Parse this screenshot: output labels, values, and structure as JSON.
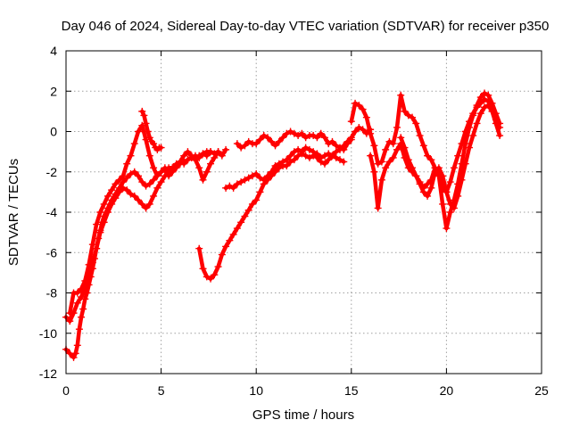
{
  "chart_data": {
    "type": "scatter",
    "title": "Day 046 of 2024, Sidereal Day-to-day VTEC variation (SDTVAR) for receiver p350",
    "xlabel": "GPS time / hours",
    "ylabel": "SDTVAR / TECUs",
    "xlim": [
      0,
      25
    ],
    "ylim": [
      -12,
      4
    ],
    "xticks": [
      0,
      5,
      10,
      15,
      20,
      25
    ],
    "yticks": [
      -12,
      -10,
      -8,
      -6,
      -4,
      -2,
      0,
      2,
      4
    ],
    "grid": true,
    "legend": "none",
    "marker": "plus",
    "color": "#ff0000",
    "series": [
      {
        "x": [
          0.0,
          0.2,
          0.4,
          0.5,
          0.6,
          0.7,
          0.8,
          0.9,
          1.0,
          1.1,
          1.2,
          1.3,
          1.4,
          1.5,
          1.6,
          1.7,
          1.8,
          1.9,
          2.0,
          2.2,
          2.4,
          2.6,
          2.8,
          3.0,
          3.2,
          3.4,
          3.6,
          3.8,
          4.0,
          4.2,
          4.4,
          4.6,
          4.8,
          5.0,
          5.2,
          5.4,
          5.6,
          5.8,
          6.0,
          6.2,
          6.4,
          6.6,
          6.8,
          7.0,
          7.2,
          7.4,
          7.6,
          7.8,
          8.0,
          8.2,
          8.4
        ],
        "y": [
          -10.8,
          -11.0,
          -11.2,
          -11.0,
          -10.6,
          -9.8,
          -9.2,
          -8.8,
          -8.3,
          -8.0,
          -7.6,
          -7.2,
          -6.8,
          -6.3,
          -5.8,
          -5.3,
          -4.9,
          -4.5,
          -4.2,
          -3.8,
          -3.4,
          -3.1,
          -2.8,
          -2.5,
          -2.3,
          -2.1,
          -2.0,
          -2.2,
          -2.5,
          -2.7,
          -2.6,
          -2.4,
          -2.2,
          -2.0,
          -1.9,
          -1.8,
          -1.8,
          -1.6,
          -1.5,
          -1.6,
          -1.4,
          -1.3,
          -1.2,
          -1.3,
          -1.1,
          -1.0,
          -1.0,
          -1.1,
          -1.0,
          -1.2,
          -0.9
        ]
      },
      {
        "x": [
          0.0,
          0.2,
          0.4,
          0.6,
          0.8,
          1.0,
          1.2,
          1.4,
          1.6,
          1.8,
          2.0,
          2.2,
          2.4,
          2.6,
          2.8,
          3.0,
          3.2,
          3.4,
          3.6,
          3.8,
          4.0,
          4.2,
          4.4,
          4.6,
          4.8,
          5.0,
          5.2,
          5.4,
          5.6,
          5.8,
          6.0,
          6.2,
          6.4,
          6.6,
          6.8,
          7.0,
          7.2,
          7.4,
          7.6
        ],
        "y": [
          -9.2,
          -9.4,
          -9.0,
          -8.5,
          -8.2,
          -7.8,
          -7.2,
          -6.5,
          -5.8,
          -5.0,
          -4.5,
          -4.0,
          -3.6,
          -3.3,
          -3.0,
          -2.8,
          -2.9,
          -3.1,
          -3.2,
          -3.4,
          -3.6,
          -3.8,
          -3.6,
          -3.2,
          -2.8,
          -2.5,
          -2.2,
          -2.0,
          -1.8,
          -1.7,
          -1.6,
          -1.5,
          -1.4,
          -1.3,
          -1.4,
          -1.2,
          -1.1,
          -1.2,
          -1.0
        ]
      },
      {
        "x": [
          0.2,
          0.4,
          0.6,
          0.8,
          1.0,
          1.2,
          1.4,
          1.6,
          1.8,
          2.0,
          2.2,
          2.4,
          2.6,
          2.8,
          3.0,
          3.2,
          3.4,
          3.6,
          3.8,
          4.0,
          4.2,
          4.4,
          4.6,
          4.8,
          5.0,
          5.2,
          5.4,
          5.6,
          5.8,
          6.0,
          6.2,
          6.4,
          6.6,
          6.8,
          7.0,
          7.2,
          7.4,
          7.6,
          7.8,
          8.0
        ],
        "y": [
          -9.0,
          -8.0,
          -8.0,
          -7.8,
          -7.4,
          -6.6,
          -5.6,
          -4.6,
          -4.0,
          -3.6,
          -3.2,
          -2.9,
          -2.6,
          -2.4,
          -2.2,
          -1.6,
          -1.2,
          -0.6,
          0.0,
          0.3,
          -0.4,
          -1.2,
          -1.8,
          -2.2,
          -2.0,
          -1.8,
          -2.2,
          -2.0,
          -1.8,
          -1.5,
          -1.2,
          -1.0,
          -1.2,
          -1.4,
          -1.8,
          -2.4,
          -2.0,
          -1.6,
          -1.3,
          -1.0
        ]
      },
      {
        "x": [
          4.0,
          4.1,
          4.2,
          4.3,
          4.4,
          4.5,
          4.6,
          4.7,
          4.8,
          4.9,
          5.0
        ],
        "y": [
          1.0,
          0.8,
          0.4,
          0.0,
          -0.3,
          -0.5,
          -0.6,
          -0.8,
          -0.9,
          -0.8,
          -0.8
        ]
      },
      {
        "x": [
          7.0,
          7.2,
          7.4,
          7.6,
          7.8,
          8.0,
          8.2,
          8.4,
          8.6,
          8.8,
          9.0,
          9.2,
          9.4,
          9.6,
          9.8,
          10.0,
          10.2,
          10.4,
          10.6,
          10.8,
          11.0,
          11.2,
          11.4,
          11.6,
          11.8,
          12.0,
          12.2,
          12.4,
          12.6,
          12.8,
          13.0,
          13.2,
          13.4,
          13.6,
          13.8,
          14.0,
          14.2,
          14.4,
          14.6,
          14.8,
          15.0,
          15.2,
          15.4,
          15.6,
          15.8,
          16.0
        ],
        "y": [
          -5.8,
          -6.8,
          -7.2,
          -7.3,
          -7.1,
          -6.7,
          -6.1,
          -5.7,
          -5.4,
          -5.1,
          -4.8,
          -4.5,
          -4.2,
          -3.9,
          -3.6,
          -3.4,
          -3.0,
          -2.6,
          -2.4,
          -2.2,
          -2.0,
          -1.8,
          -1.7,
          -1.7,
          -1.5,
          -1.4,
          -1.2,
          -1.1,
          -1.2,
          -1.3,
          -1.2,
          -1.1,
          -1.3,
          -1.2,
          -1.1,
          -1.2,
          -1.0,
          -0.9,
          -0.7,
          -0.5,
          -0.3,
          0.0,
          0.2,
          0.1,
          -0.1,
          0.1
        ]
      },
      {
        "x": [
          8.4,
          8.6,
          8.8,
          9.0,
          9.2,
          9.4,
          9.6,
          9.8,
          10.0,
          10.2,
          10.4,
          10.6,
          10.8,
          11.0,
          11.2,
          11.4,
          11.6,
          11.8,
          12.0,
          12.2,
          12.4,
          12.6,
          12.8,
          13.0,
          13.2,
          13.4,
          13.6,
          13.8,
          14.0,
          14.2,
          14.4,
          14.6
        ],
        "y": [
          -2.8,
          -2.7,
          -2.8,
          -2.6,
          -2.5,
          -2.4,
          -2.3,
          -2.2,
          -2.1,
          -2.3,
          -2.4,
          -2.2,
          -2.0,
          -1.7,
          -1.6,
          -1.5,
          -1.4,
          -1.2,
          -1.0,
          -0.9,
          -1.0,
          -0.8,
          -0.9,
          -1.0,
          -1.3,
          -1.5,
          -1.6,
          -1.4,
          -1.2,
          -1.3,
          -1.4,
          -1.5
        ]
      },
      {
        "x": [
          9.0,
          9.2,
          9.4,
          9.6,
          9.8,
          10.0,
          10.2,
          10.4,
          10.6,
          10.8,
          11.0,
          11.2,
          11.4,
          11.6,
          11.8,
          12.0,
          12.2,
          12.4,
          12.6,
          12.8,
          13.0,
          13.2,
          13.4,
          13.6,
          13.8,
          14.0,
          14.2,
          14.4,
          14.6,
          14.8,
          15.0
        ],
        "y": [
          -0.6,
          -0.8,
          -0.7,
          -0.5,
          -0.6,
          -0.6,
          -0.4,
          -0.2,
          -0.3,
          -0.5,
          -0.7,
          -0.5,
          -0.3,
          -0.1,
          0.0,
          -0.1,
          -0.2,
          -0.1,
          -0.3,
          -0.2,
          -0.2,
          -0.3,
          -0.1,
          -0.3,
          -0.6,
          -0.5,
          -0.7,
          -0.8,
          -0.9,
          -0.6,
          -0.4
        ]
      },
      {
        "x": [
          15.0,
          15.2,
          15.4,
          15.6,
          15.8,
          16.0,
          16.2,
          16.4,
          16.6,
          16.8,
          17.0,
          17.2,
          17.4,
          17.6,
          17.8,
          18.0,
          18.2,
          18.4,
          18.6,
          18.8,
          19.0,
          19.2,
          19.4,
          19.6,
          19.8,
          20.0,
          20.2,
          20.4,
          20.6,
          20.8,
          21.0,
          21.2,
          21.4,
          21.6,
          21.8,
          22.0,
          22.2,
          22.4,
          22.6,
          22.8
        ],
        "y": [
          0.5,
          1.4,
          1.3,
          1.1,
          0.7,
          -0.1,
          -0.7,
          -1.6,
          -1.5,
          -0.9,
          -0.5,
          -0.6,
          0.2,
          1.8,
          1.0,
          0.8,
          0.7,
          0.4,
          -0.2,
          -0.7,
          -1.2,
          -1.4,
          -1.8,
          -2.2,
          -2.8,
          -3.0,
          -2.5,
          -1.8,
          -1.2,
          -0.6,
          0.0,
          0.5,
          0.9,
          1.2,
          1.4,
          1.6,
          1.5,
          1.1,
          0.6,
          0.2
        ]
      },
      {
        "x": [
          16.0,
          16.2,
          16.4,
          16.6,
          16.8,
          17.0,
          17.2,
          17.4,
          17.6,
          17.8,
          18.0,
          18.2,
          18.4,
          18.6,
          18.8,
          19.0,
          19.2,
          19.4,
          19.6,
          19.8,
          20.0,
          20.2,
          20.4,
          20.6,
          20.8,
          21.0,
          21.2,
          21.4,
          21.6,
          21.8,
          22.0,
          22.2,
          22.4,
          22.6,
          22.8
        ],
        "y": [
          -1.2,
          -2.0,
          -3.8,
          -2.4,
          -1.8,
          -1.5,
          -1.3,
          -0.9,
          -0.6,
          -1.3,
          -1.8,
          -2.0,
          -2.2,
          -2.5,
          -2.8,
          -2.6,
          -2.4,
          -1.8,
          -2.2,
          -3.6,
          -4.8,
          -4.0,
          -3.4,
          -2.6,
          -1.6,
          -0.6,
          0.2,
          0.8,
          1.3,
          1.7,
          1.9,
          1.8,
          1.4,
          0.9,
          0.4
        ]
      },
      {
        "x": [
          17.6,
          17.8,
          18.0,
          18.2,
          18.4,
          18.6,
          18.8,
          19.0,
          19.2,
          19.4,
          19.6,
          19.8,
          20.0,
          20.2,
          20.4,
          20.6,
          20.8,
          21.0,
          21.2,
          21.4,
          21.6,
          21.8,
          22.0,
          22.2,
          22.4,
          22.6,
          22.8
        ],
        "y": [
          -0.3,
          -0.8,
          -1.4,
          -1.8,
          -2.2,
          -2.6,
          -3.0,
          -3.2,
          -2.8,
          -2.0,
          -1.8,
          -2.2,
          -3.0,
          -3.6,
          -3.8,
          -3.2,
          -2.4,
          -1.6,
          -0.8,
          -0.2,
          0.4,
          0.9,
          1.2,
          1.3,
          1.0,
          0.4,
          -0.2
        ]
      }
    ]
  }
}
